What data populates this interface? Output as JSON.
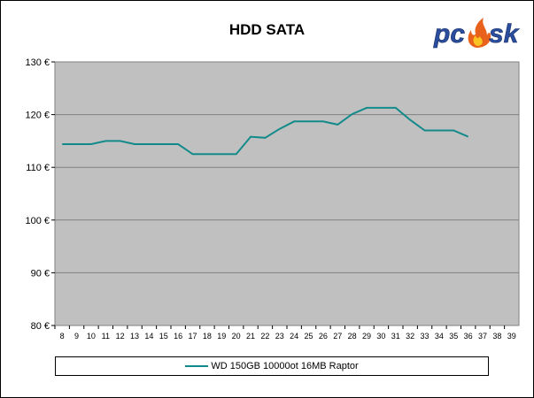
{
  "logo": {
    "text_left": "pc",
    "text_right": "sk",
    "icon": "flame-icon"
  },
  "chart_data": {
    "type": "line",
    "title": "HDD SATA",
    "xlabel": "",
    "ylabel": "",
    "x": [
      8,
      9,
      10,
      11,
      12,
      13,
      14,
      15,
      16,
      17,
      18,
      19,
      20,
      21,
      22,
      23,
      24,
      25,
      26,
      27,
      28,
      29,
      30,
      31,
      32,
      33,
      34,
      35,
      36,
      37,
      38,
      39
    ],
    "y_ticks": [
      "80 €",
      "90 €",
      "100 €",
      "110 €",
      "120 €",
      "130 €"
    ],
    "ylim": [
      80,
      130
    ],
    "grid": "horizontal",
    "legend_position": "bottom",
    "series": [
      {
        "name": "WD 150GB 10000ot 16MB Raptor",
        "color": "#138a8a",
        "x": [
          8,
          9,
          10,
          11,
          12,
          13,
          14,
          15,
          16,
          17,
          18,
          19,
          20,
          21,
          22,
          23,
          24,
          25,
          26,
          27,
          28,
          29,
          30,
          31,
          32,
          33,
          34,
          35,
          36
        ],
        "values": [
          114.4,
          114.4,
          114.4,
          115.0,
          115.0,
          114.4,
          114.4,
          114.4,
          114.4,
          112.5,
          112.5,
          112.5,
          112.5,
          115.8,
          115.6,
          117.3,
          118.7,
          118.7,
          118.7,
          118.1,
          120.1,
          121.3,
          121.3,
          121.3,
          119.0,
          117.0,
          117.0,
          117.0,
          115.8
        ]
      }
    ]
  }
}
